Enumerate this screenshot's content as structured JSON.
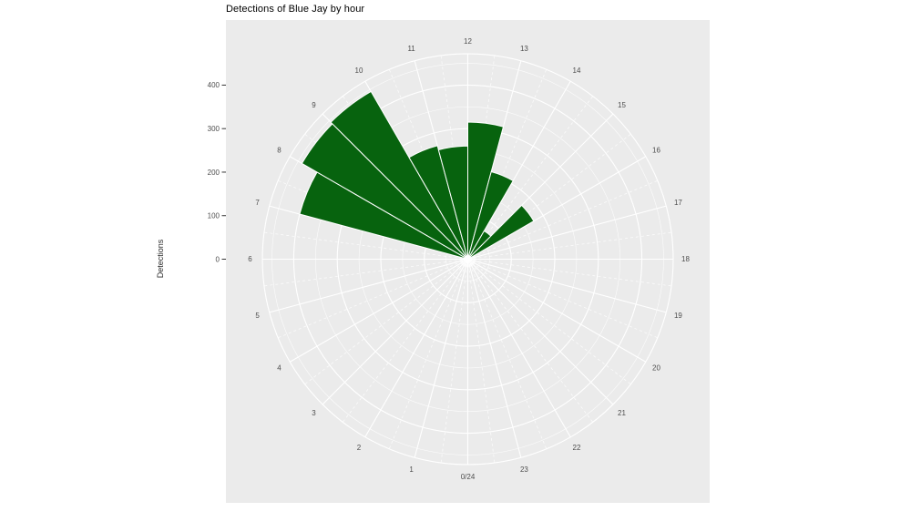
{
  "header": {
    "title": "Detections of Blue Jay by hour"
  },
  "axes": {
    "y_label": "Detections",
    "r_tick_labels": [
      "0",
      "100",
      "200",
      "300",
      "400"
    ]
  },
  "chart_data": {
    "type": "polar_bar",
    "title": "Detections of Blue Jay by hour",
    "ylabel": "Detections",
    "orientation": "hours clockwise: 0/24 at bottom, 6 at left, 12 at top, 18 at right; each bar spans from hour line h to h+1",
    "categories": [
      0,
      1,
      2,
      3,
      4,
      5,
      6,
      7,
      8,
      9,
      10,
      11,
      12,
      13,
      14,
      15,
      16,
      17,
      18,
      19,
      20,
      21,
      22,
      23
    ],
    "hour_labels": [
      "0/24",
      "1",
      "2",
      "3",
      "4",
      "5",
      "6",
      "7",
      "8",
      "9",
      "10",
      "11",
      "12",
      "13",
      "14",
      "15",
      "16",
      "17",
      "18",
      "19",
      "20",
      "21",
      "22",
      "23"
    ],
    "values": [
      0,
      0,
      0,
      0,
      0,
      0,
      0,
      400,
      440,
      445,
      270,
      260,
      315,
      208,
      75,
      175,
      0,
      0,
      0,
      0,
      0,
      0,
      0,
      0
    ],
    "r_axis": {
      "major_ticks": [
        0,
        100,
        200,
        300,
        400
      ],
      "minor_ticks": [
        50,
        150,
        250,
        350,
        450
      ],
      "outer_limit": 472,
      "grid": true,
      "minor_radial_style": "dashed"
    },
    "colors": {
      "bar": "#07630E",
      "panel": "#EBEBEB",
      "grid": "#FFFFFF",
      "axis_text": "#4D4D4D",
      "tick_mark": "#333333",
      "title_text": "#000000"
    }
  }
}
